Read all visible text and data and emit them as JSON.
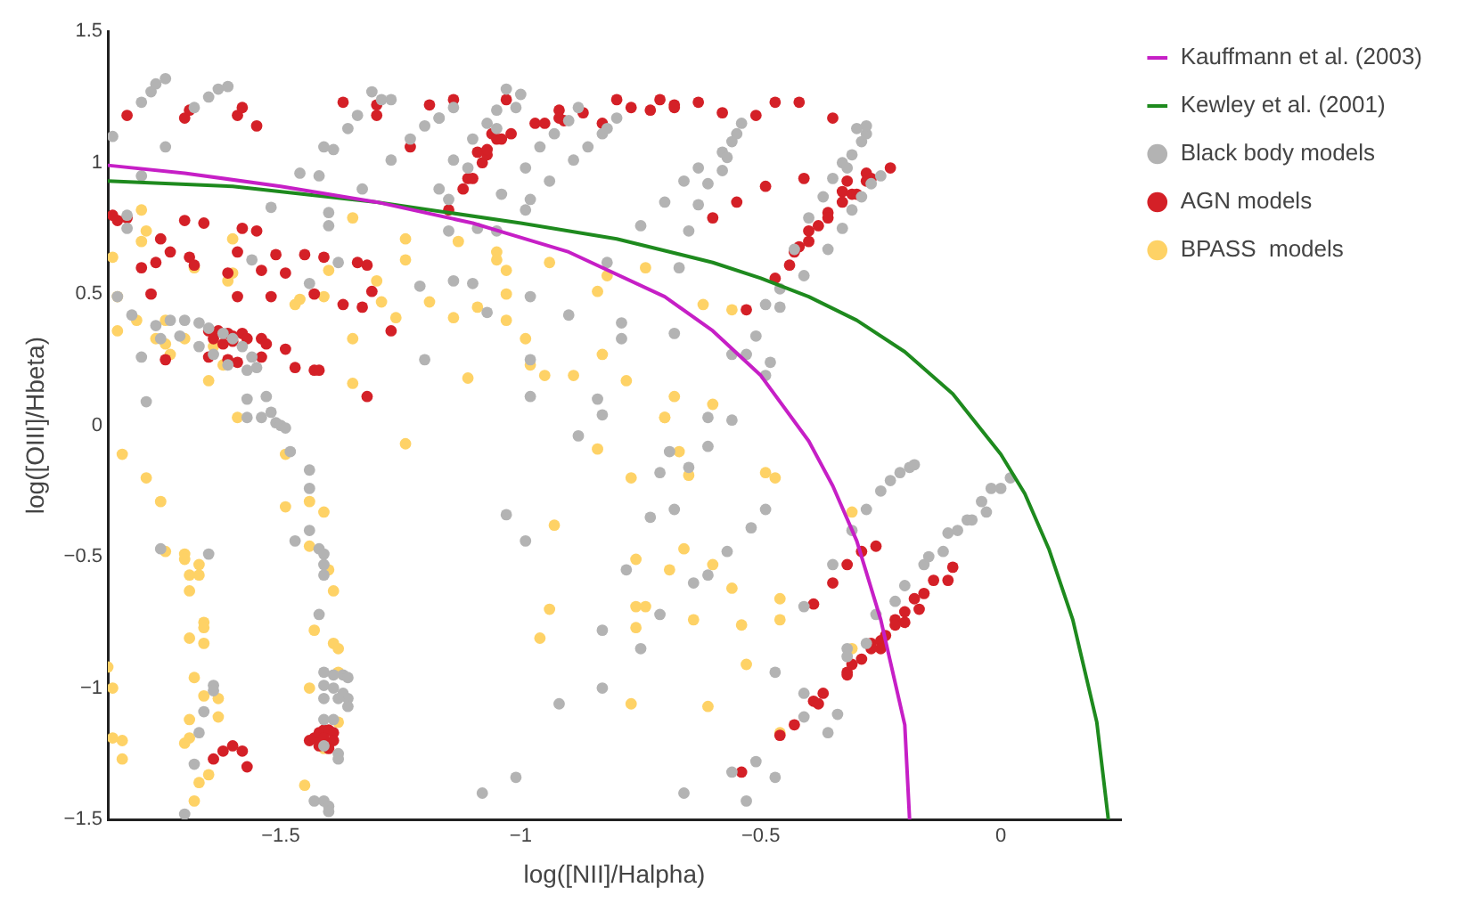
{
  "chart_data": {
    "type": "scatter",
    "xlabel": "log([NII]/Halpha)",
    "ylabel": "log([OIII]/Hbeta)",
    "xlim": [
      -1.86,
      0.25
    ],
    "ylim": [
      -1.5,
      1.5
    ],
    "xticks": [
      {
        "value": -1.5,
        "label": "−1.5"
      },
      {
        "value": -1,
        "label": "−1"
      },
      {
        "value": -0.5,
        "label": "−0.5"
      },
      0
    ],
    "yticks": [
      {
        "value": -1.5,
        "label": "−1.5"
      },
      {
        "value": -1,
        "label": "−1"
      },
      {
        "value": -0.5,
        "label": "−0.5"
      },
      0,
      0.5,
      1,
      1.5
    ],
    "grid": false,
    "legend": "top right",
    "series": [
      {
        "name": "Kauffmann et al. (2003)",
        "type": "line",
        "marker": "none",
        "color": "#c61fc6",
        "x": [
          -1.86,
          -1.7,
          -1.5,
          -1.3,
          -1.1,
          -0.9,
          -0.7,
          -0.6,
          -0.5,
          -0.4,
          -0.35,
          -0.3,
          -0.25,
          -0.2,
          -0.19
        ],
        "values": [
          0.99,
          0.96,
          0.91,
          0.85,
          0.77,
          0.66,
          0.49,
          0.36,
          0.19,
          -0.06,
          -0.23,
          -0.44,
          -0.74,
          -1.14,
          -1.5
        ]
      },
      {
        "name": "Kewley et al. (2001)",
        "type": "line",
        "marker": "none",
        "color": "#1e8a1e",
        "x": [
          -1.86,
          -1.6,
          -1.3,
          -1.0,
          -0.8,
          -0.6,
          -0.5,
          -0.4,
          -0.3,
          -0.2,
          -0.1,
          0.0,
          0.05,
          0.1,
          0.15,
          0.2,
          0.224
        ],
        "values": [
          0.93,
          0.91,
          0.85,
          0.77,
          0.71,
          0.62,
          0.56,
          0.49,
          0.4,
          0.28,
          0.12,
          -0.11,
          -0.26,
          -0.47,
          -0.74,
          -1.13,
          -1.5
        ]
      },
      {
        "name": "Black body models",
        "type": "scatter",
        "marker": "circle",
        "color": "#b3b3b3",
        "x": [
          -1.85,
          -1.79,
          -1.77,
          -1.76,
          -1.74,
          -1.79,
          -1.74,
          -1.68,
          -1.65,
          -1.63,
          -1.61,
          -1.46,
          -1.42,
          -1.41,
          -1.39,
          -1.36,
          -1.34,
          -1.31,
          -1.29,
          -1.27,
          -1.27,
          -1.23,
          -1.2,
          -1.17,
          -1.17,
          -1.15,
          -1.33,
          -1.52,
          -1.4,
          -1.4,
          -1.38,
          -1.56,
          -1.44,
          -1.21,
          -1.2,
          -1.82,
          -1.82,
          -1.84,
          -1.81,
          -1.76,
          -1.73,
          -1.7,
          -1.67,
          -1.65,
          -1.62,
          -1.6,
          -1.58,
          -1.56,
          -1.55,
          -1.57,
          -1.61,
          -1.64,
          -1.67,
          -1.71,
          -1.75,
          -1.79,
          -1.78,
          -1.57,
          -1.53,
          -1.52,
          -1.57,
          -1.51,
          -1.5,
          -1.54,
          -1.49,
          -1.48,
          -1.44,
          -1.44,
          -1.44,
          -1.47,
          -1.42,
          -1.41,
          -1.41,
          -1.41,
          -1.42,
          -1.75,
          -1.65,
          -1.41,
          -1.39,
          -1.37,
          -1.36,
          -1.41,
          -1.39,
          -1.37,
          -1.36,
          -1.41,
          -1.38,
          -1.36,
          -1.41,
          -1.39,
          -1.41,
          -1.38,
          -1.38,
          -1.43,
          -1.41,
          -1.4,
          -1.4,
          -1.64,
          -1.64,
          -1.66,
          -1.67,
          -1.68,
          -1.7,
          -1.03,
          -0.99,
          -0.88,
          -0.69,
          -0.71,
          -0.65,
          -0.61,
          -0.56,
          -0.61,
          -0.68,
          -0.73,
          -0.78,
          -0.64,
          -0.61,
          -0.57,
          -0.52,
          -0.49,
          -0.71,
          -0.83,
          -0.75,
          -0.83,
          -0.92,
          -1.01,
          -1.08,
          -0.66,
          -0.56,
          -0.51,
          -0.53,
          -0.47,
          -0.47,
          -0.41,
          -0.41,
          -0.41,
          -0.34,
          -0.36,
          -0.35,
          -0.31,
          -0.28,
          -0.25,
          -0.23,
          -0.21,
          -0.19,
          -0.18,
          -0.32,
          -0.32,
          -0.28,
          -0.26,
          -0.22,
          -0.2,
          -0.16,
          -0.15,
          -0.12,
          -0.11,
          -0.09,
          -0.07,
          -0.06,
          -0.04,
          -0.03,
          -0.02,
          0.0,
          0.02,
          -1.17,
          -1.14,
          -1.05,
          -1.03,
          -1.0,
          -1.01,
          -1.07,
          -1.05,
          -1.1,
          -1.14,
          -1.11,
          -1.15,
          -1.04,
          -0.99,
          -0.98,
          -0.99,
          -0.96,
          -0.93,
          -0.94,
          -0.89,
          -0.88,
          -0.9,
          -0.86,
          -0.83,
          -0.82,
          -0.8,
          -1.09,
          -1.05,
          -1.14,
          -1.1,
          -1.07,
          -0.98,
          -0.9,
          -0.82,
          -0.79,
          -0.79,
          -0.75,
          -0.7,
          -0.65,
          -0.68,
          -0.67,
          -0.66,
          -0.63,
          -0.63,
          -0.61,
          -0.58,
          -0.58,
          -0.57,
          -0.56,
          -0.55,
          -0.54,
          -0.56,
          -0.53,
          -0.51,
          -0.49,
          -0.48,
          -0.49,
          -0.46,
          -0.46,
          -0.41,
          -0.43,
          -0.4,
          -0.36,
          -0.37,
          -0.35,
          -0.33,
          -0.33,
          -0.32,
          -0.31,
          -0.31,
          -0.29,
          -0.3,
          -0.28,
          -0.28,
          -0.27,
          -0.25,
          -0.29,
          -0.98,
          -0.84,
          -0.83,
          -0.98
        ],
        "values": [
          1.1,
          1.23,
          1.27,
          1.3,
          1.32,
          0.95,
          1.06,
          1.21,
          1.25,
          1.28,
          1.29,
          0.96,
          0.95,
          1.06,
          1.05,
          1.13,
          1.18,
          1.27,
          1.24,
          1.24,
          1.01,
          1.09,
          1.14,
          1.17,
          0.9,
          0.74,
          0.9,
          0.83,
          0.76,
          0.81,
          0.62,
          0.63,
          0.54,
          0.53,
          0.25,
          0.8,
          0.75,
          0.49,
          0.42,
          0.38,
          0.4,
          0.4,
          0.39,
          0.37,
          0.35,
          0.33,
          0.3,
          0.26,
          0.22,
          0.21,
          0.23,
          0.27,
          0.3,
          0.34,
          0.33,
          0.26,
          0.09,
          0.1,
          0.11,
          0.05,
          0.03,
          0.01,
          0.0,
          0.03,
          -0.01,
          -0.1,
          -0.17,
          -0.24,
          -0.4,
          -0.44,
          -0.47,
          -0.49,
          -0.53,
          -0.57,
          -0.72,
          -0.47,
          -0.49,
          -0.94,
          -0.95,
          -0.95,
          -0.96,
          -0.99,
          -1.0,
          -1.02,
          -1.04,
          -1.04,
          -1.04,
          -1.07,
          -1.12,
          -1.12,
          -1.22,
          -1.25,
          -1.27,
          -1.43,
          -1.43,
          -1.45,
          -1.47,
          -0.99,
          -1.01,
          -1.09,
          -1.17,
          -1.29,
          -1.48,
          -0.34,
          -0.44,
          -0.04,
          -0.1,
          -0.18,
          -0.16,
          0.03,
          0.02,
          -0.08,
          -0.32,
          -0.35,
          -0.55,
          -0.6,
          -0.57,
          -0.48,
          -0.39,
          -0.32,
          -0.72,
          -0.78,
          -0.85,
          -1.0,
          -1.06,
          -1.34,
          -1.4,
          -1.4,
          -1.32,
          -1.28,
          -1.43,
          -1.34,
          -0.94,
          -0.69,
          -1.02,
          -1.11,
          -1.1,
          -1.17,
          -0.53,
          -0.4,
          -0.32,
          -0.25,
          -0.21,
          -0.18,
          -0.16,
          -0.15,
          -0.85,
          -0.88,
          -0.83,
          -0.72,
          -0.67,
          -0.61,
          -0.53,
          -0.5,
          -0.48,
          -0.41,
          -0.4,
          -0.36,
          -0.36,
          -0.29,
          -0.33,
          -0.24,
          -0.24,
          -0.2,
          1.17,
          1.21,
          1.2,
          1.28,
          1.26,
          1.21,
          1.15,
          1.13,
          1.09,
          1.01,
          0.98,
          0.86,
          0.88,
          0.98,
          0.86,
          0.82,
          1.06,
          1.11,
          0.93,
          1.01,
          1.21,
          1.16,
          1.06,
          1.11,
          1.13,
          1.17,
          0.75,
          0.74,
          0.55,
          0.54,
          0.43,
          0.49,
          0.42,
          0.62,
          0.39,
          0.33,
          0.76,
          0.85,
          0.74,
          0.35,
          0.6,
          0.93,
          0.98,
          0.84,
          0.92,
          0.97,
          1.04,
          1.02,
          1.08,
          1.11,
          1.15,
          0.27,
          0.27,
          0.34,
          0.46,
          0.24,
          0.19,
          0.45,
          0.52,
          0.57,
          0.67,
          0.79,
          0.67,
          0.87,
          0.94,
          0.75,
          1.0,
          0.98,
          0.82,
          1.03,
          1.08,
          1.13,
          1.11,
          1.14,
          0.92,
          0.95,
          0.87,
          0.11,
          0.1,
          0.04,
          0.25
        ]
      },
      {
        "name": "AGN models",
        "type": "scatter",
        "marker": "circle",
        "color": "#d42027",
        "x": [
          -1.82,
          -1.7,
          -1.69,
          -1.59,
          -1.58,
          -1.55,
          -1.37,
          -1.3,
          -1.3,
          -1.23,
          -1.19,
          -1.85,
          -1.84,
          -1.82,
          -1.75,
          -1.73,
          -1.7,
          -1.66,
          -1.58,
          -1.55,
          -1.79,
          -1.76,
          -1.69,
          -1.68,
          -1.59,
          -1.54,
          -1.51,
          -1.49,
          -1.45,
          -1.41,
          -1.34,
          -1.32,
          -1.61,
          -1.77,
          -1.59,
          -1.52,
          -1.43,
          -1.37,
          -1.33,
          -1.31,
          -1.27,
          -1.65,
          -1.63,
          -1.61,
          -1.6,
          -1.64,
          -1.62,
          -1.6,
          -1.58,
          -1.57,
          -1.54,
          -1.53,
          -1.49,
          -1.74,
          -1.65,
          -1.61,
          -1.59,
          -1.54,
          -1.47,
          -1.43,
          -1.42,
          -1.32,
          -1.14,
          -1.03,
          -1.15,
          -1.12,
          -1.11,
          -1.1,
          -1.08,
          -1.09,
          -1.07,
          -1.07,
          -1.06,
          -1.05,
          -1.04,
          -1.02,
          -0.97,
          -0.95,
          -0.92,
          -0.92,
          -0.91,
          -0.87,
          -0.83,
          -0.8,
          -0.77,
          -0.73,
          -0.71,
          -0.68,
          -0.68,
          -0.63,
          -0.58,
          -0.51,
          -0.47,
          -0.42,
          -0.35,
          -0.23,
          -0.28,
          -0.27,
          -0.28,
          -0.32,
          -0.33,
          -0.31,
          -0.3,
          -0.33,
          -0.36,
          -0.36,
          -0.38,
          -0.4,
          -0.4,
          -0.42,
          -0.43,
          -0.44,
          -0.47,
          -0.41,
          -0.49,
          -0.55,
          -0.6,
          -0.53,
          -0.26,
          -0.29,
          -0.32,
          -0.35,
          -0.39,
          -0.1,
          -0.11,
          -0.14,
          -0.16,
          -0.18,
          -0.17,
          -0.2,
          -0.2,
          -0.22,
          -0.22,
          -0.24,
          -0.25,
          -0.27,
          -0.25,
          -0.27,
          -0.29,
          -0.31,
          -0.32,
          -0.32,
          -0.37,
          -0.39,
          -0.38,
          -0.43,
          -0.46,
          -0.54,
          -1.64,
          -1.62,
          -1.6,
          -1.58,
          -1.57,
          -1.44,
          -1.43,
          -1.42,
          -1.41,
          -1.4,
          -1.39,
          -1.41,
          -1.39,
          -1.42,
          -1.4
        ],
        "values": [
          1.18,
          1.17,
          1.2,
          1.18,
          1.21,
          1.14,
          1.23,
          1.22,
          1.18,
          1.06,
          1.22,
          0.8,
          0.78,
          0.79,
          0.71,
          0.66,
          0.78,
          0.77,
          0.75,
          0.74,
          0.6,
          0.62,
          0.64,
          0.61,
          0.66,
          0.59,
          0.65,
          0.58,
          0.65,
          0.64,
          0.62,
          0.61,
          0.58,
          0.5,
          0.49,
          0.49,
          0.5,
          0.46,
          0.45,
          0.51,
          0.36,
          0.36,
          0.36,
          0.35,
          0.34,
          0.33,
          0.31,
          0.32,
          0.35,
          0.33,
          0.33,
          0.31,
          0.29,
          0.25,
          0.26,
          0.25,
          0.24,
          0.26,
          0.22,
          0.21,
          0.21,
          0.11,
          1.24,
          1.24,
          0.82,
          0.9,
          0.94,
          0.94,
          1.0,
          1.04,
          1.03,
          1.05,
          1.11,
          1.09,
          1.09,
          1.11,
          1.15,
          1.15,
          1.2,
          1.17,
          1.16,
          1.19,
          1.15,
          1.24,
          1.21,
          1.2,
          1.24,
          1.22,
          1.21,
          1.23,
          1.19,
          1.18,
          1.23,
          1.23,
          1.17,
          0.98,
          0.96,
          0.94,
          0.93,
          0.93,
          0.89,
          0.88,
          0.88,
          0.85,
          0.81,
          0.79,
          0.76,
          0.74,
          0.7,
          0.68,
          0.66,
          0.61,
          0.56,
          0.94,
          0.91,
          0.85,
          0.79,
          0.44,
          -0.46,
          -0.48,
          -0.53,
          -0.6,
          -0.68,
          -0.54,
          -0.59,
          -0.59,
          -0.64,
          -0.66,
          -0.7,
          -0.71,
          -0.75,
          -0.74,
          -0.76,
          -0.8,
          -0.82,
          -0.83,
          -0.85,
          -0.85,
          -0.89,
          -0.91,
          -0.94,
          -0.95,
          -1.02,
          -1.05,
          -1.06,
          -1.14,
          -1.18,
          -1.32,
          -1.27,
          -1.24,
          -1.22,
          -1.24,
          -1.3,
          -1.2,
          -1.19,
          -1.17,
          -1.16,
          -1.16,
          -1.17,
          -1.19,
          -1.2,
          -1.22,
          -1.23
        ]
      },
      {
        "name": "BPASS  models",
        "type": "scatter",
        "marker": "circle",
        "color": "#fed266",
        "x": [
          -1.79,
          -1.78,
          -1.79,
          -1.85,
          -1.84,
          -1.84,
          -1.8,
          -1.76,
          -1.74,
          -1.73,
          -1.74,
          -1.7,
          -1.68,
          -1.6,
          -1.61,
          -1.6,
          -1.64,
          -1.62,
          -1.65,
          -1.47,
          -1.46,
          -1.41,
          -1.4,
          -1.35,
          -1.35,
          -1.35,
          -1.3,
          -1.29,
          -1.26,
          -1.24,
          -1.24,
          -1.19,
          -1.59,
          -1.13,
          -1.05,
          -1.05,
          -1.03,
          -1.14,
          -1.09,
          -1.03,
          -1.03,
          -0.99,
          -0.98,
          -0.95,
          -1.11,
          -0.94,
          -0.89,
          -0.84,
          -0.82,
          -0.83,
          -0.78,
          -0.74,
          -0.68,
          -0.7,
          -0.62,
          -0.6,
          -0.56,
          -1.83,
          -1.78,
          -1.75,
          -1.74,
          -1.7,
          -1.7,
          -1.67,
          -1.69,
          -1.67,
          -1.69,
          -1.66,
          -1.66,
          -1.69,
          -1.66,
          -1.68,
          -1.66,
          -1.63,
          -1.63,
          -1.69,
          -1.69,
          -1.7,
          -1.65,
          -1.67,
          -1.68,
          -1.86,
          -1.85,
          -1.85,
          -1.83,
          -1.83,
          -1.49,
          -1.49,
          -1.44,
          -1.41,
          -1.44,
          -1.4,
          -1.39,
          -1.43,
          -1.39,
          -1.38,
          -1.38,
          -1.44,
          -1.38,
          -1.41,
          -1.45,
          -1.24,
          -0.84,
          -0.93,
          -0.94,
          -0.96,
          -0.77,
          -0.76,
          -0.76,
          -0.74,
          -0.76,
          -0.69,
          -0.66,
          -0.67,
          -0.65,
          -0.6,
          -0.64,
          -0.56,
          -0.49,
          -0.47,
          -0.46,
          -0.46,
          -0.54,
          -0.53,
          -0.61,
          -0.77,
          -0.46,
          -0.31,
          -0.31,
          -0.7
        ],
        "values": [
          0.82,
          0.74,
          0.7,
          0.64,
          0.49,
          0.36,
          0.4,
          0.33,
          0.31,
          0.27,
          0.4,
          0.33,
          0.6,
          0.71,
          0.55,
          0.58,
          0.3,
          0.23,
          0.17,
          0.46,
          0.48,
          0.49,
          0.59,
          0.79,
          0.33,
          0.16,
          0.55,
          0.47,
          0.41,
          0.71,
          0.63,
          0.47,
          0.03,
          0.7,
          0.66,
          0.63,
          0.59,
          0.41,
          0.45,
          0.5,
          0.4,
          0.33,
          0.23,
          0.19,
          0.18,
          0.62,
          0.19,
          0.51,
          0.57,
          0.27,
          0.17,
          0.6,
          0.11,
          0.03,
          0.46,
          0.08,
          0.44,
          -0.11,
          -0.2,
          -0.29,
          -0.48,
          -0.49,
          -0.51,
          -0.53,
          -0.57,
          -0.57,
          -0.63,
          -0.75,
          -0.77,
          -0.81,
          -0.83,
          -0.96,
          -1.03,
          -1.04,
          -1.11,
          -1.12,
          -1.19,
          -1.21,
          -1.33,
          -1.36,
          -1.43,
          -0.92,
          -1.0,
          -1.19,
          -1.2,
          -1.27,
          -0.11,
          -0.31,
          -0.29,
          -0.33,
          -0.46,
          -0.55,
          -0.63,
          -0.78,
          -0.83,
          -0.85,
          -0.94,
          -1.0,
          -1.13,
          -1.23,
          -1.37,
          -0.07,
          -0.09,
          -0.38,
          -0.7,
          -0.81,
          -0.2,
          -0.51,
          -0.69,
          -0.69,
          -0.77,
          -0.55,
          -0.47,
          -0.1,
          -0.19,
          -0.53,
          -0.74,
          -0.62,
          -0.18,
          -0.2,
          -0.66,
          -0.74,
          -0.76,
          -0.91,
          -1.07,
          -1.06,
          -1.17,
          -0.85,
          -0.33,
          0.03
        ]
      }
    ]
  }
}
